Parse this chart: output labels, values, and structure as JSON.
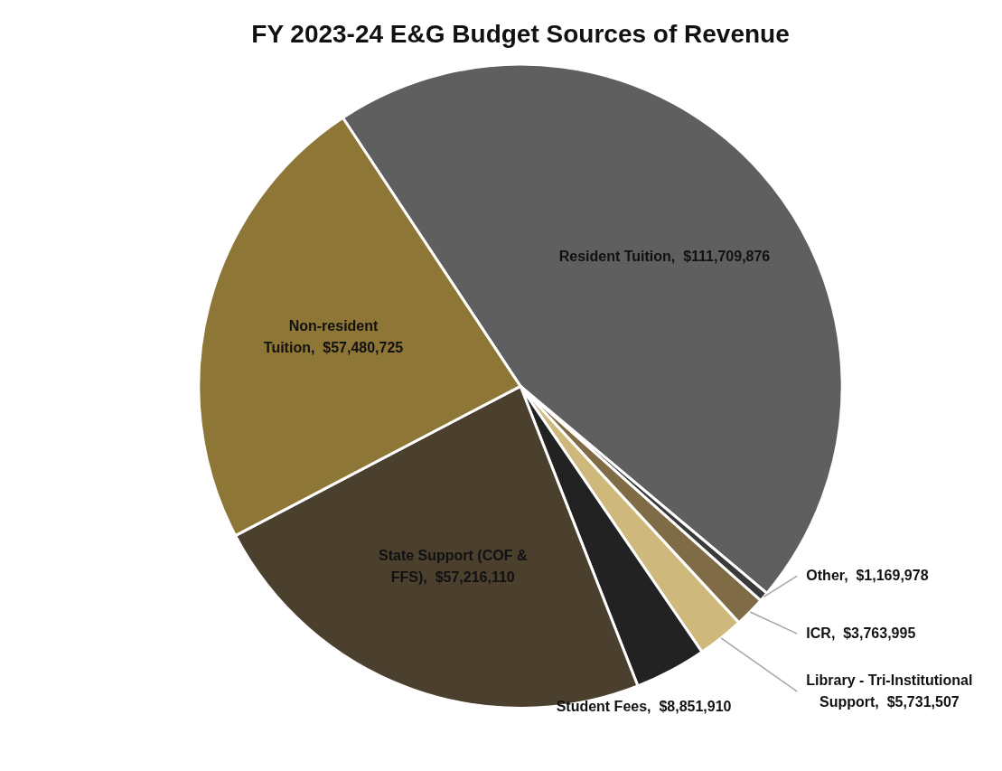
{
  "chart_data": {
    "type": "pie",
    "title": "FY 2023-24 E&G Budget Sources of Revenue",
    "categories": [
      "Resident Tuition",
      "Other",
      "ICR",
      "Library - Tri-Institutional Support",
      "Student Fees",
      "State Support (COF & FFS)",
      "Non-resident Tuition"
    ],
    "values": [
      111709876,
      1169978,
      3763995,
      5731507,
      8851910,
      57216110,
      57480725
    ],
    "value_labels": [
      "$111,709,876",
      "$1,169,978",
      "$3,763,995",
      "$5,731,507",
      "$8,851,910",
      "$57,216,110",
      "$57,480,725"
    ],
    "colors": [
      "#5f5f5f",
      "#3a3a3a",
      "#7f6b45",
      "#cfb87c",
      "#222222",
      "#4b3f2e",
      "#8e7636"
    ],
    "legend": false
  }
}
